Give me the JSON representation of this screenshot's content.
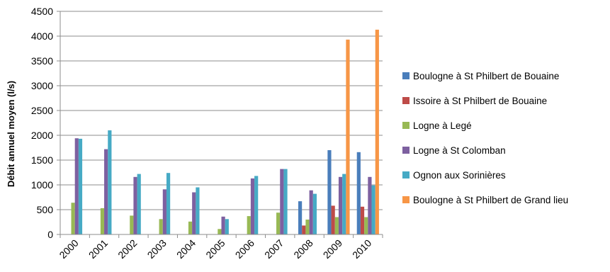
{
  "chart_data": {
    "type": "bar",
    "title": "",
    "xlabel": "",
    "ylabel": "Débit annuel moyen (l/s)",
    "ylim": [
      0,
      4500
    ],
    "yticks": [
      0,
      500,
      1000,
      1500,
      2000,
      2500,
      3000,
      3500,
      4000,
      4500
    ],
    "grid": true,
    "legend_position": "right",
    "categories": [
      "2000",
      "2001",
      "2002",
      "2003",
      "2004",
      "2005",
      "2006",
      "2007",
      "2008",
      "2009",
      "2010"
    ],
    "series": [
      {
        "name": "Boulogne à St Philbert de Bouaine",
        "color": "#4a7ebb",
        "values": [
          null,
          null,
          null,
          null,
          null,
          null,
          null,
          null,
          670,
          1700,
          1660
        ]
      },
      {
        "name": "Issoire à St Philbert de Bouaine",
        "color": "#be4b48",
        "values": [
          null,
          null,
          null,
          null,
          null,
          null,
          null,
          null,
          180,
          580,
          560
        ]
      },
      {
        "name": "Logne à Legé",
        "color": "#98b954",
        "values": [
          640,
          530,
          380,
          310,
          260,
          110,
          370,
          440,
          300,
          350,
          350
        ]
      },
      {
        "name": "Logne à St Colomban",
        "color": "#7d60a0",
        "values": [
          1940,
          1720,
          1160,
          910,
          850,
          360,
          1130,
          1320,
          890,
          1160,
          1160
        ]
      },
      {
        "name": "Ognon aux Sorinières",
        "color": "#46aac5",
        "values": [
          1930,
          2100,
          1220,
          1240,
          950,
          310,
          1180,
          1320,
          820,
          1220,
          990
        ]
      },
      {
        "name": "Boulogne à St Philbert de Grand lieu",
        "color": "#f79646",
        "values": [
          null,
          null,
          null,
          null,
          null,
          null,
          null,
          null,
          null,
          3930,
          4130
        ]
      }
    ]
  }
}
